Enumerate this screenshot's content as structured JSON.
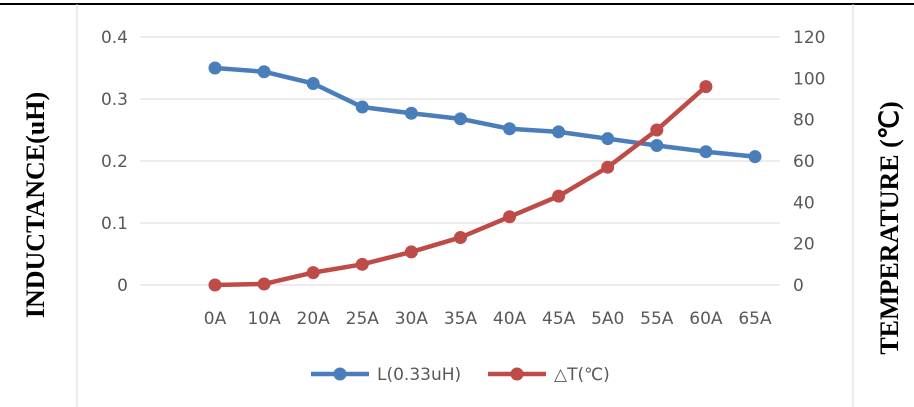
{
  "chart_data": {
    "type": "line",
    "categories": [
      "0A",
      "10A",
      "20A",
      "25A",
      "30A",
      "35A",
      "40A",
      "45A",
      "5A0",
      "55A",
      "60A",
      "65A"
    ],
    "series": [
      {
        "name": "L(0.33uH)",
        "axis": "left",
        "color": "#4A7EBB",
        "values": [
          0.35,
          0.344,
          0.325,
          0.287,
          0.277,
          0.268,
          0.252,
          0.247,
          0.236,
          0.225,
          0.215,
          0.207
        ]
      },
      {
        "name": "△T(℃)",
        "axis": "right",
        "color": "#BE4B48",
        "values": [
          0,
          0.5,
          6,
          10,
          16,
          23,
          33,
          43,
          57,
          75,
          96,
          null
        ]
      }
    ],
    "ylabel": "INDUCTANCE(uH)",
    "y2label": "TEMPERATURE (℃)",
    "ylim": [
      0,
      0.4
    ],
    "y2lim": [
      0,
      120
    ],
    "yticks": [
      "0",
      "0.1",
      "0.2",
      "0.3",
      "0.4"
    ],
    "y2ticks": [
      "0",
      "20",
      "40",
      "60",
      "80",
      "100",
      "120"
    ],
    "grid": true,
    "legend": "bottom"
  }
}
